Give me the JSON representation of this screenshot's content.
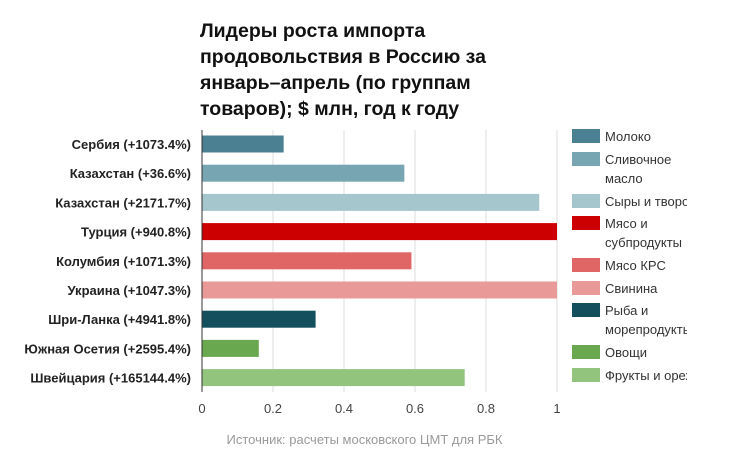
{
  "title_lines": [
    "Лидеры роста импорта",
    "продовольствия в Россию за",
    "январь–апрель (по группам",
    "товаров); $ млн, год к году"
  ],
  "source": "Источник: расчеты московского ЦМТ для РБК",
  "chart_data": {
    "type": "bar",
    "orientation": "horizontal",
    "title": "Лидеры роста импорта продовольствия в Россию за январь–апрель (по группам товаров); $ млн, год к году",
    "categories": [
      "Сербия (+1073.4%)",
      "Казахстан (+36.6%)",
      "Казахстан (+2171.7%)",
      "Турция (+940.8%)",
      "Колумбия (+1071.3%)",
      "Украина (+1047.3%)",
      "Шри-Ланка (+4941.8%)",
      "Южная Осетия (+2595.4%)",
      "Швейцария (+165144.4%)"
    ],
    "values": [
      0.23,
      0.57,
      0.95,
      1.0,
      0.59,
      1.0,
      0.32,
      0.16,
      0.74
    ],
    "series_names": [
      "Молоко",
      "Сливочное масло",
      "Сыры и творог",
      "Мясо и субпродукты",
      "Мясо КРС",
      "Свинина",
      "Рыба и морепродукты",
      "Овощи",
      "Фрукты и орехи"
    ],
    "legend_labels": [
      "Молоко",
      "Сливочное масло",
      "Сыры и твор",
      "Мясо и субпродукты",
      "Мясо КРС",
      "Свинина",
      "Рыба и морепродукт",
      "Овощи",
      "Фрукты и оре"
    ],
    "colors": [
      "#4a8091",
      "#77a6b2",
      "#a5c6cd",
      "#cc0000",
      "#e06666",
      "#ea9999",
      "#134f5c",
      "#6aa84f",
      "#93c47d"
    ],
    "xticks": [
      "0",
      "0.2",
      "0.4",
      "0.6",
      "0.8",
      "1"
    ],
    "xlim": [
      0,
      1
    ],
    "grid": true,
    "legend_position": "right"
  }
}
